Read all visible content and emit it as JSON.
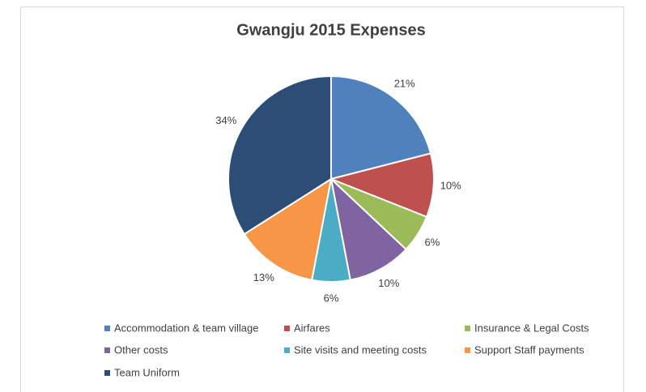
{
  "chart_data": {
    "type": "pie",
    "title": "Gwangju 2015 Expenses",
    "categories": [
      "Accommodation & team village",
      "Airfares",
      "Insurance & Legal Costs",
      "Other costs",
      "Site visits and meeting costs",
      "Support Staff payments",
      "Team Uniform"
    ],
    "values": [
      21,
      10,
      6,
      10,
      6,
      13,
      34
    ],
    "value_labels": [
      "21%",
      "10%",
      "6%",
      "10%",
      "6%",
      "13%",
      "34%"
    ],
    "colors": [
      "#4f81bd",
      "#c0504d",
      "#9bbb59",
      "#8064a2",
      "#4bacc6",
      "#f79646",
      "#2c4d75"
    ],
    "legend": "bottom"
  }
}
